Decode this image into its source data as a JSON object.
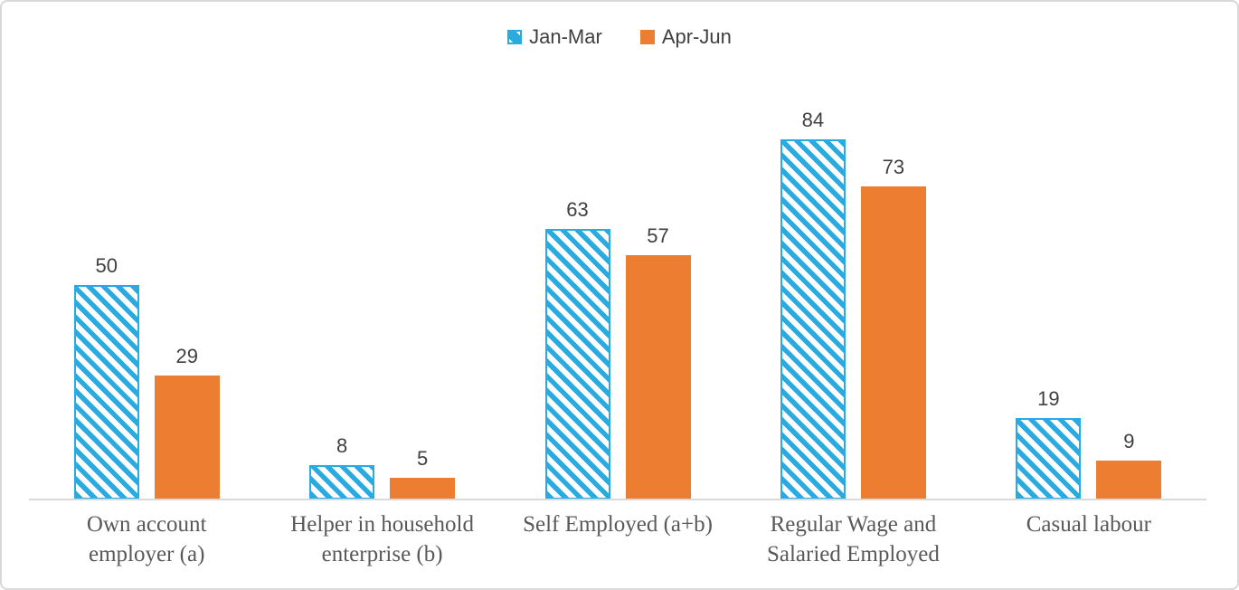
{
  "chart_data": {
    "type": "bar",
    "title": "",
    "xlabel": "",
    "ylabel": "",
    "grid": false,
    "legend_position": "top",
    "data_labels": true,
    "ylim": [
      0,
      100
    ],
    "categories": [
      "Own account employer (a)",
      "Helper in household enterprise (b)",
      "Self Employed (a+b)",
      "Regular Wage and Salaried Employed",
      "Casual labour"
    ],
    "series": [
      {
        "name": "Jan-Mar",
        "pattern": "diagonal-hatch",
        "color": "#29ABE2",
        "values": [
          50,
          8,
          63,
          84,
          19
        ]
      },
      {
        "name": "Apr-Jun",
        "pattern": "solid",
        "color": "#ED7D31",
        "values": [
          29,
          5,
          57,
          73,
          9
        ]
      }
    ]
  },
  "colors": {
    "series_jan_mar": "#29ABE2",
    "series_apr_jun": "#ED7D31",
    "axis_line": "#D9D9D9",
    "frame_border": "#D9D9D9",
    "value_label_text": "#404040",
    "category_label_text": "#595959"
  }
}
